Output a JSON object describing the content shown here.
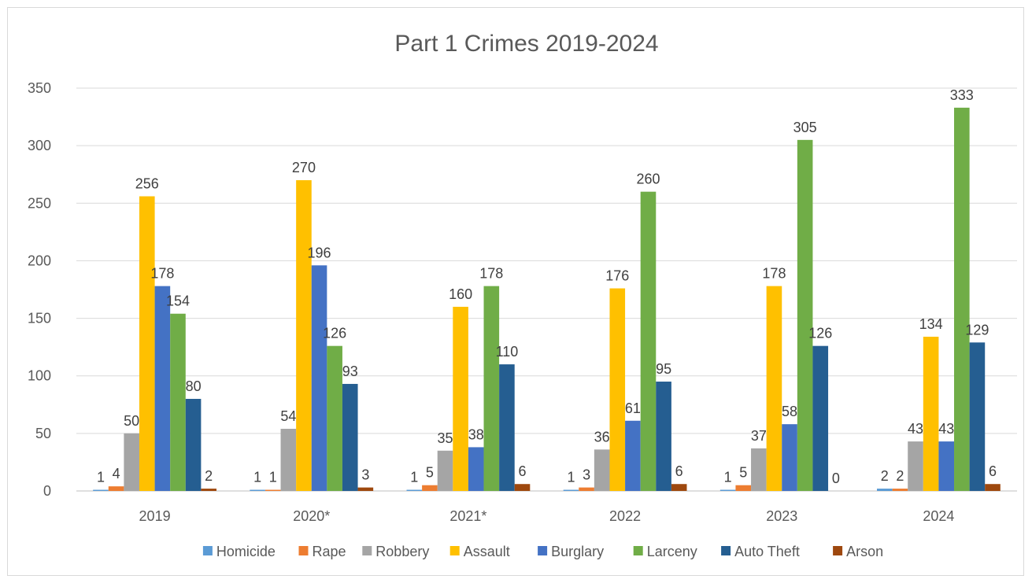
{
  "chart_data": {
    "type": "bar",
    "title": "Part 1 Crimes 2019-2024",
    "xlabel": "",
    "ylabel": "",
    "categories": [
      "2019",
      "2020*",
      "2021*",
      "2022",
      "2023",
      "2024"
    ],
    "ylim": [
      0,
      350
    ],
    "yticks": [
      0,
      50,
      100,
      150,
      200,
      250,
      300,
      350
    ],
    "grid": true,
    "legend_position": "bottom",
    "series": [
      {
        "name": "Homicide",
        "color": "#5b9bd5",
        "values": [
          1,
          1,
          1,
          1,
          1,
          2
        ]
      },
      {
        "name": "Rape",
        "color": "#ed7d31",
        "values": [
          4,
          1,
          5,
          3,
          5,
          2
        ]
      },
      {
        "name": "Robbery",
        "color": "#a5a5a5",
        "values": [
          50,
          54,
          35,
          36,
          37,
          43
        ]
      },
      {
        "name": "Assault",
        "color": "#ffc000",
        "values": [
          256,
          270,
          160,
          176,
          178,
          134
        ]
      },
      {
        "name": "Burglary",
        "color": "#4472c4",
        "values": [
          178,
          196,
          38,
          61,
          58,
          43
        ]
      },
      {
        "name": "Larceny",
        "color": "#70ad47",
        "values": [
          154,
          126,
          178,
          260,
          305,
          333
        ]
      },
      {
        "name": "Auto Theft",
        "color": "#255e91",
        "values": [
          80,
          93,
          110,
          95,
          126,
          129
        ]
      },
      {
        "name": "Arson",
        "color": "#9e480e",
        "values": [
          2,
          3,
          6,
          6,
          0,
          6
        ]
      }
    ]
  }
}
